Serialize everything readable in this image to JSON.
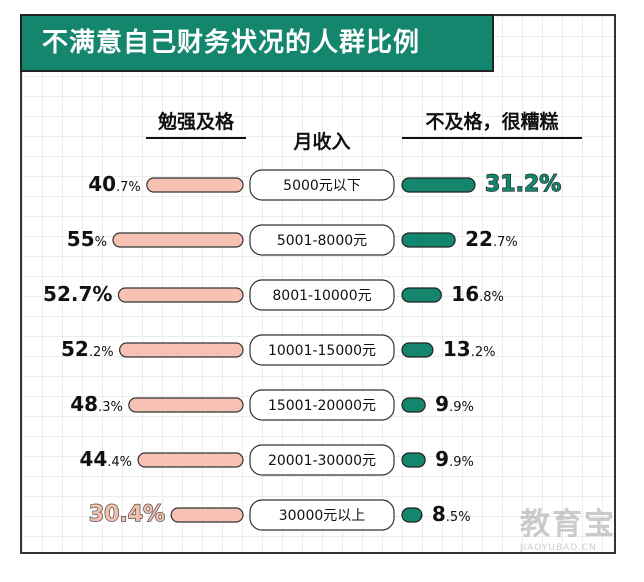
{
  "title": "不满意自己财务状况的人群比例",
  "left_header": "勉强及格",
  "center_header": "月收入",
  "right_header": "不及格，很糟糕",
  "watermark": {
    "main": "教育宝",
    "sub": "JIAOYUBAO.CN"
  },
  "colors": {
    "accent": "#14866d",
    "left_bar": "#f7c2b3",
    "text": "#111111"
  },
  "chart_data": {
    "type": "bar",
    "categories": [
      "5000元以下",
      "5001-8000元",
      "8001-10000元",
      "10001-15000元",
      "15001-20000元",
      "20001-30000元",
      "30000元以上"
    ],
    "series": [
      {
        "name": "勉强及格",
        "values": [
          40.7,
          55,
          52.7,
          52.2,
          48.3,
          44.4,
          30.4
        ],
        "labels": [
          {
            "int": "40",
            "dec": ".7%"
          },
          {
            "int": "55",
            "dec": "%"
          },
          {
            "int": "52.7%",
            "dec": ""
          },
          {
            "int": "52",
            "dec": ".2%"
          },
          {
            "int": "48",
            "dec": ".3%"
          },
          {
            "int": "44",
            "dec": ".4%"
          },
          {
            "int": "30.4%",
            "dec": ""
          }
        ]
      },
      {
        "name": "不及格，很糟糕",
        "values": [
          31.2,
          22.7,
          16.8,
          13.2,
          9.9,
          9.9,
          8.5
        ],
        "labels": [
          {
            "int": "31.2%",
            "dec": ""
          },
          {
            "int": "22",
            "dec": ".7%"
          },
          {
            "int": "16",
            "dec": ".8%"
          },
          {
            "int": "13",
            "dec": ".2%"
          },
          {
            "int": "9",
            "dec": ".9%"
          },
          {
            "int": "9",
            "dec": ".9%"
          },
          {
            "int": "8",
            "dec": ".5%"
          }
        ]
      }
    ],
    "highlighted": {
      "left_index": 6,
      "right_index": 0
    }
  }
}
